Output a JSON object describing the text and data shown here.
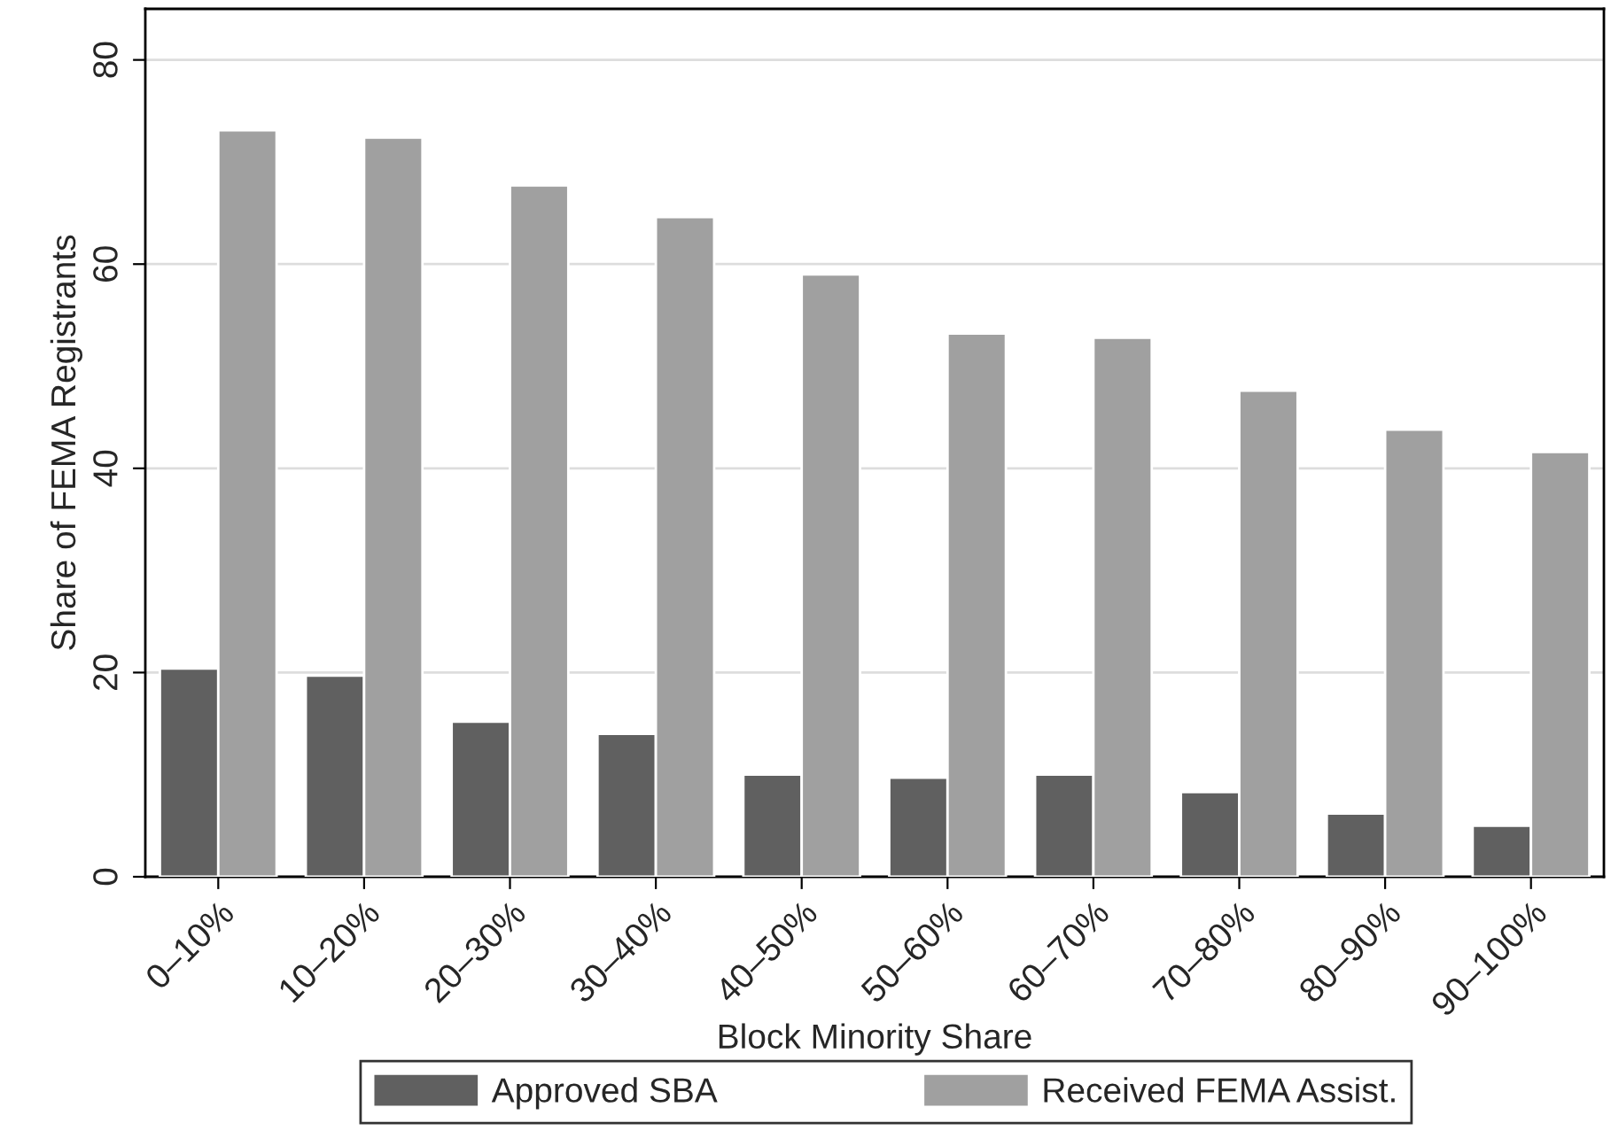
{
  "chart_data": {
    "type": "bar",
    "xlabel": "Block Minority Share",
    "ylabel": "Share of FEMA Registrants",
    "categories": [
      "0–10%",
      "10–20%",
      "20–30%",
      "30–40%",
      "40–50%",
      "50–60%",
      "60–70%",
      "70–80%",
      "80–90%",
      "90–100%"
    ],
    "series": [
      {
        "name": "Approved SBA",
        "color": "#606060",
        "values": [
          20.4,
          19.7,
          15.2,
          14.0,
          10.0,
          9.7,
          10.0,
          8.3,
          6.2,
          5.0
        ]
      },
      {
        "name": "Received FEMA Assist.",
        "color": "#a0a0a0",
        "values": [
          73.1,
          72.4,
          67.7,
          64.6,
          59.0,
          53.2,
          52.8,
          47.6,
          43.8,
          41.6
        ]
      }
    ],
    "ylim": [
      0,
      85
    ],
    "yticks": [
      0,
      20,
      40,
      60,
      80
    ],
    "grid": "y",
    "legend": "bottom"
  }
}
